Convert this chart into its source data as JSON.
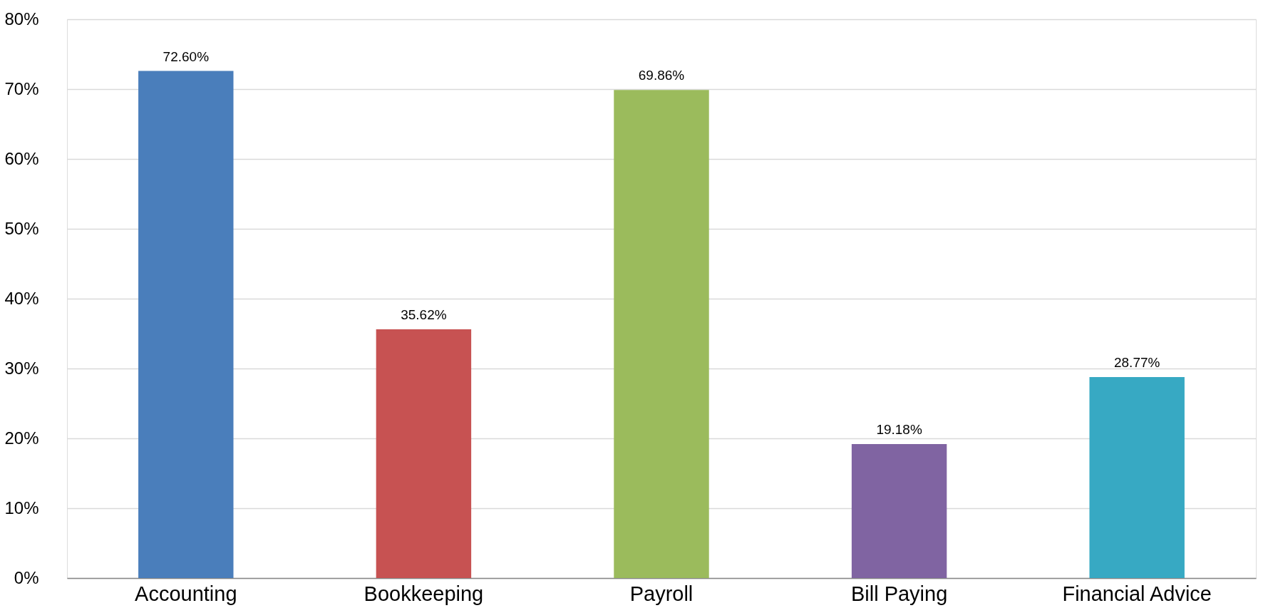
{
  "chart_data": {
    "type": "bar",
    "categories": [
      "Accounting",
      "Bookkeeping",
      "Payroll",
      "Bill Paying",
      "Financial Advice"
    ],
    "values": [
      72.6,
      35.62,
      69.86,
      19.18,
      28.77
    ],
    "value_labels": [
      "72.60%",
      "35.62%",
      "69.86%",
      "19.18%",
      "28.77%"
    ],
    "colors": [
      "#4a7ebb",
      "#c75252",
      "#9bbb5c",
      "#8064a2",
      "#37a9c3"
    ],
    "ylim": [
      0,
      80
    ],
    "yticks": [
      {
        "value": 0,
        "label": "0%"
      },
      {
        "value": 10,
        "label": "10%"
      },
      {
        "value": 20,
        "label": "20%"
      },
      {
        "value": 30,
        "label": "30%"
      },
      {
        "value": 40,
        "label": "40%"
      },
      {
        "value": 50,
        "label": "50%"
      },
      {
        "value": 60,
        "label": "60%"
      },
      {
        "value": 70,
        "label": "70%"
      },
      {
        "value": 80,
        "label": "80%"
      }
    ],
    "grid": "y",
    "legend": false
  }
}
